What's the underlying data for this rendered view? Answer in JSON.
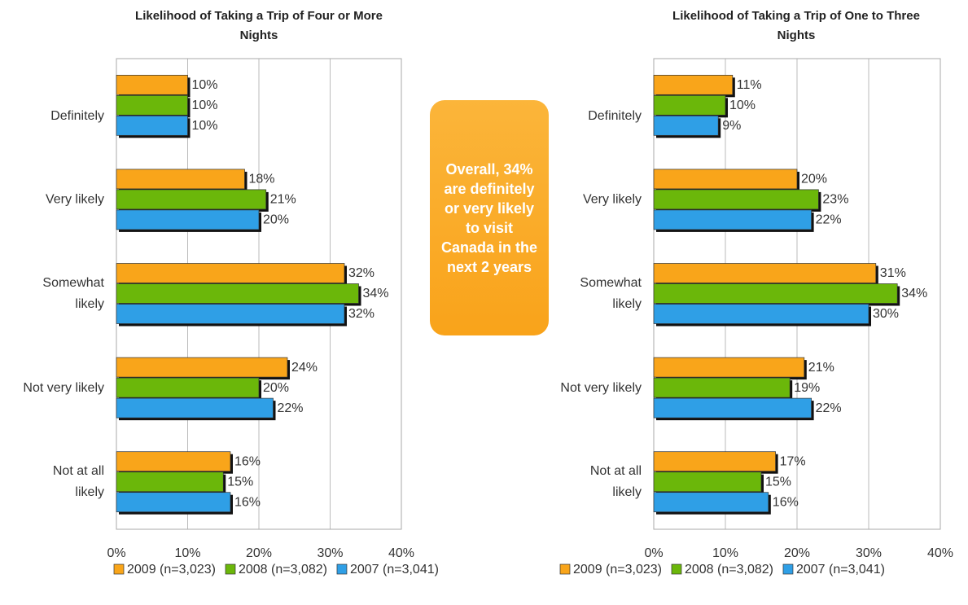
{
  "callout": "Overall, 34% are definitely or very likely to visit Canada in the next 2 years",
  "chart_data": [
    {
      "type": "bar",
      "orientation": "horizontal",
      "title": "Likelihood of Taking a Trip of Four or More Nights",
      "categories": [
        "Definitely",
        "Very likely",
        "Somewhat likely",
        "Not very likely",
        "Not at all likely"
      ],
      "series": [
        {
          "name": "2009 (n=3,023)",
          "color": "#f9a51a",
          "values": [
            10,
            18,
            32,
            24,
            16
          ],
          "value_labels": [
            "10%",
            "18%",
            "32%",
            "24%",
            "16%"
          ]
        },
        {
          "name": "2008 (n=3,082)",
          "color": "#6bb70a",
          "values": [
            10,
            21,
            34,
            20,
            15
          ],
          "value_labels": [
            "10%",
            "21%",
            "34%",
            "20%",
            "15%"
          ]
        },
        {
          "name": "2007 (n=3,041)",
          "color": "#2f9fe6",
          "values": [
            10,
            20,
            32,
            22,
            16
          ],
          "value_labels": [
            "10%",
            "20%",
            "32%",
            "22%",
            "16%"
          ]
        }
      ],
      "xlim": [
        0,
        40
      ],
      "xticks": [
        {
          "value": 0,
          "label": "0%"
        },
        {
          "value": 10,
          "label": "10%"
        },
        {
          "value": 20,
          "label": "20%"
        },
        {
          "value": 30,
          "label": "30%"
        },
        {
          "value": 40,
          "label": "40%"
        }
      ],
      "grid": true,
      "legend": "bottom"
    },
    {
      "type": "bar",
      "orientation": "horizontal",
      "title": "Likelihood of Taking a Trip of One to Three Nights",
      "categories": [
        "Definitely",
        "Very likely",
        "Somewhat likely",
        "Not very likely",
        "Not at all likely"
      ],
      "series": [
        {
          "name": "2009 (n=3,023)",
          "color": "#f9a51a",
          "values": [
            11,
            20,
            31,
            21,
            17
          ],
          "value_labels": [
            "11%",
            "20%",
            "31%",
            "21%",
            "17%"
          ]
        },
        {
          "name": "2008 (n=3,082)",
          "color": "#6bb70a",
          "values": [
            10,
            23,
            34,
            19,
            15
          ],
          "value_labels": [
            "10%",
            "23%",
            "34%",
            "19%",
            "15%"
          ]
        },
        {
          "name": "2007 (n=3,041)",
          "color": "#2f9fe6",
          "values": [
            9,
            22,
            30,
            22,
            16
          ],
          "value_labels": [
            "9%",
            "22%",
            "30%",
            "22%",
            "16%"
          ]
        }
      ],
      "xlim": [
        0,
        40
      ],
      "xticks": [
        {
          "value": 0,
          "label": "0%"
        },
        {
          "value": 10,
          "label": "10%"
        },
        {
          "value": 20,
          "label": "20%"
        },
        {
          "value": 30,
          "label": "30%"
        },
        {
          "value": 40,
          "label": "40%"
        }
      ],
      "grid": true,
      "legend": "bottom"
    }
  ]
}
